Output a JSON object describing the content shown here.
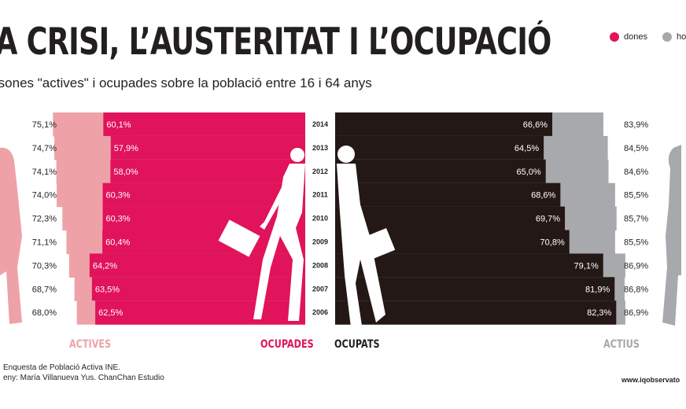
{
  "header": {
    "title": "A CRISI, L’AUSTERITAT I L’OCUPACIÓ",
    "subtitle": "rsones \"actives\" i ocupades sobre la població entre 16 i 64 anys"
  },
  "legend": [
    {
      "label": "dones",
      "color": "#e0135b"
    },
    {
      "label": "ho",
      "color": "#a7a9ac"
    }
  ],
  "labels": {
    "actives": "ACTIVES",
    "ocupades": "OCUPADES",
    "ocupats": "OCUPATS",
    "actius": "ACTIUS"
  },
  "footer": {
    "source": "Enquesta de Població Activa INE.",
    "design": "eny: María Villanueva Yus. ChanChan Estudio",
    "website": "www.iqobservato"
  },
  "colors": {
    "actives": "#eea2a8",
    "ocupades": "#e0135b",
    "ocupats": "#231815",
    "actius": "#a7a9ac"
  },
  "chart_data": {
    "type": "bar",
    "categories": [
      "2014",
      "2013",
      "2012",
      "2011",
      "2010",
      "2009",
      "2008",
      "2007",
      "2006"
    ],
    "series": [
      {
        "name": "ACTIVES",
        "values": [
          75.1,
          74.7,
          74.1,
          74.0,
          72.3,
          71.1,
          70.3,
          68.7,
          68.0
        ],
        "labels": [
          "75,1%",
          "74,7%",
          "74,1%",
          "74,0%",
          "72,3%",
          "71,1%",
          "70,3%",
          "68,7%",
          "68,0%"
        ]
      },
      {
        "name": "OCUPADES",
        "values": [
          60.1,
          57.9,
          58.0,
          60.3,
          60.3,
          60.4,
          64.2,
          63.5,
          62.5
        ],
        "labels": [
          "60,1%",
          "57,9%",
          "58,0%",
          "60,3%",
          "60,3%",
          "60,4%",
          "64,2%",
          "63,5%",
          "62,5%"
        ]
      },
      {
        "name": "OCUPATS",
        "values": [
          66.6,
          64.5,
          65.0,
          68.6,
          69.7,
          70.8,
          79.1,
          81.9,
          82.3
        ],
        "labels": [
          "66,6%",
          "64,5%",
          "65,0%",
          "68,6%",
          "69,7%",
          "70,8%",
          "79,1%",
          "81,9%",
          "82,3%"
        ]
      },
      {
        "name": "ACTIUS",
        "values": [
          83.9,
          84.5,
          84.6,
          85.5,
          85.7,
          85.5,
          86.9,
          86.8,
          86.9
        ],
        "labels": [
          "83,9%",
          "84,5%",
          "84,6%",
          "85,5%",
          "85,7%",
          "85,5%",
          "86,9%",
          "86,8%",
          "86,9%"
        ]
      }
    ]
  }
}
